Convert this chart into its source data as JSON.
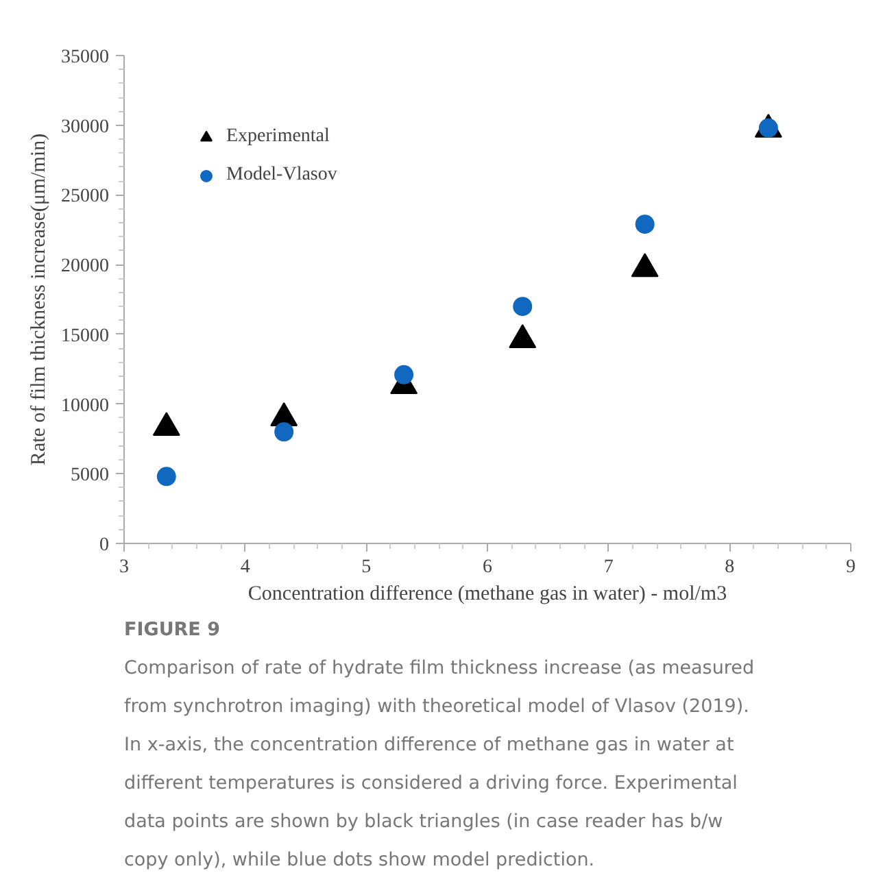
{
  "chart_data": {
    "type": "scatter",
    "xlabel": "Concentration difference (methane gas in water) - mol/m3",
    "ylabel": "Rate of film thickness increase(μm/min)",
    "x": [
      3.35,
      4.32,
      5.31,
      6.29,
      7.3,
      8.32
    ],
    "series": [
      {
        "name": "Experimental",
        "color": "#000000",
        "marker": "triangle",
        "values": [
          8300,
          9000,
          11300,
          14600,
          19700,
          29700
        ]
      },
      {
        "name": "Model-Vlasov",
        "color": "#1068c0",
        "marker": "circle",
        "values": [
          4800,
          8000,
          12100,
          17000,
          22900,
          29800
        ]
      }
    ],
    "xlim": [
      3,
      9
    ],
    "xticks": [
      3,
      4,
      5,
      6,
      7,
      8,
      9
    ],
    "ylim": [
      0,
      35000
    ],
    "yticks": [
      0,
      5000,
      10000,
      15000,
      20000,
      25000,
      30000,
      35000
    ],
    "grid": false,
    "legend": "top left",
    "annotations": [
      "FIGURE 9",
      "Comparison of rate of hydrate film thickness increase (as measured from synchrotron imaging) with theoretical model of Vlasov (2019). In x-axis, the concentration difference of methane gas in water at different temperatures is considered a driving force. Experimental data points are shown by black triangles (in case reader has b/w copy only), while blue dots show model prediction."
    ]
  }
}
